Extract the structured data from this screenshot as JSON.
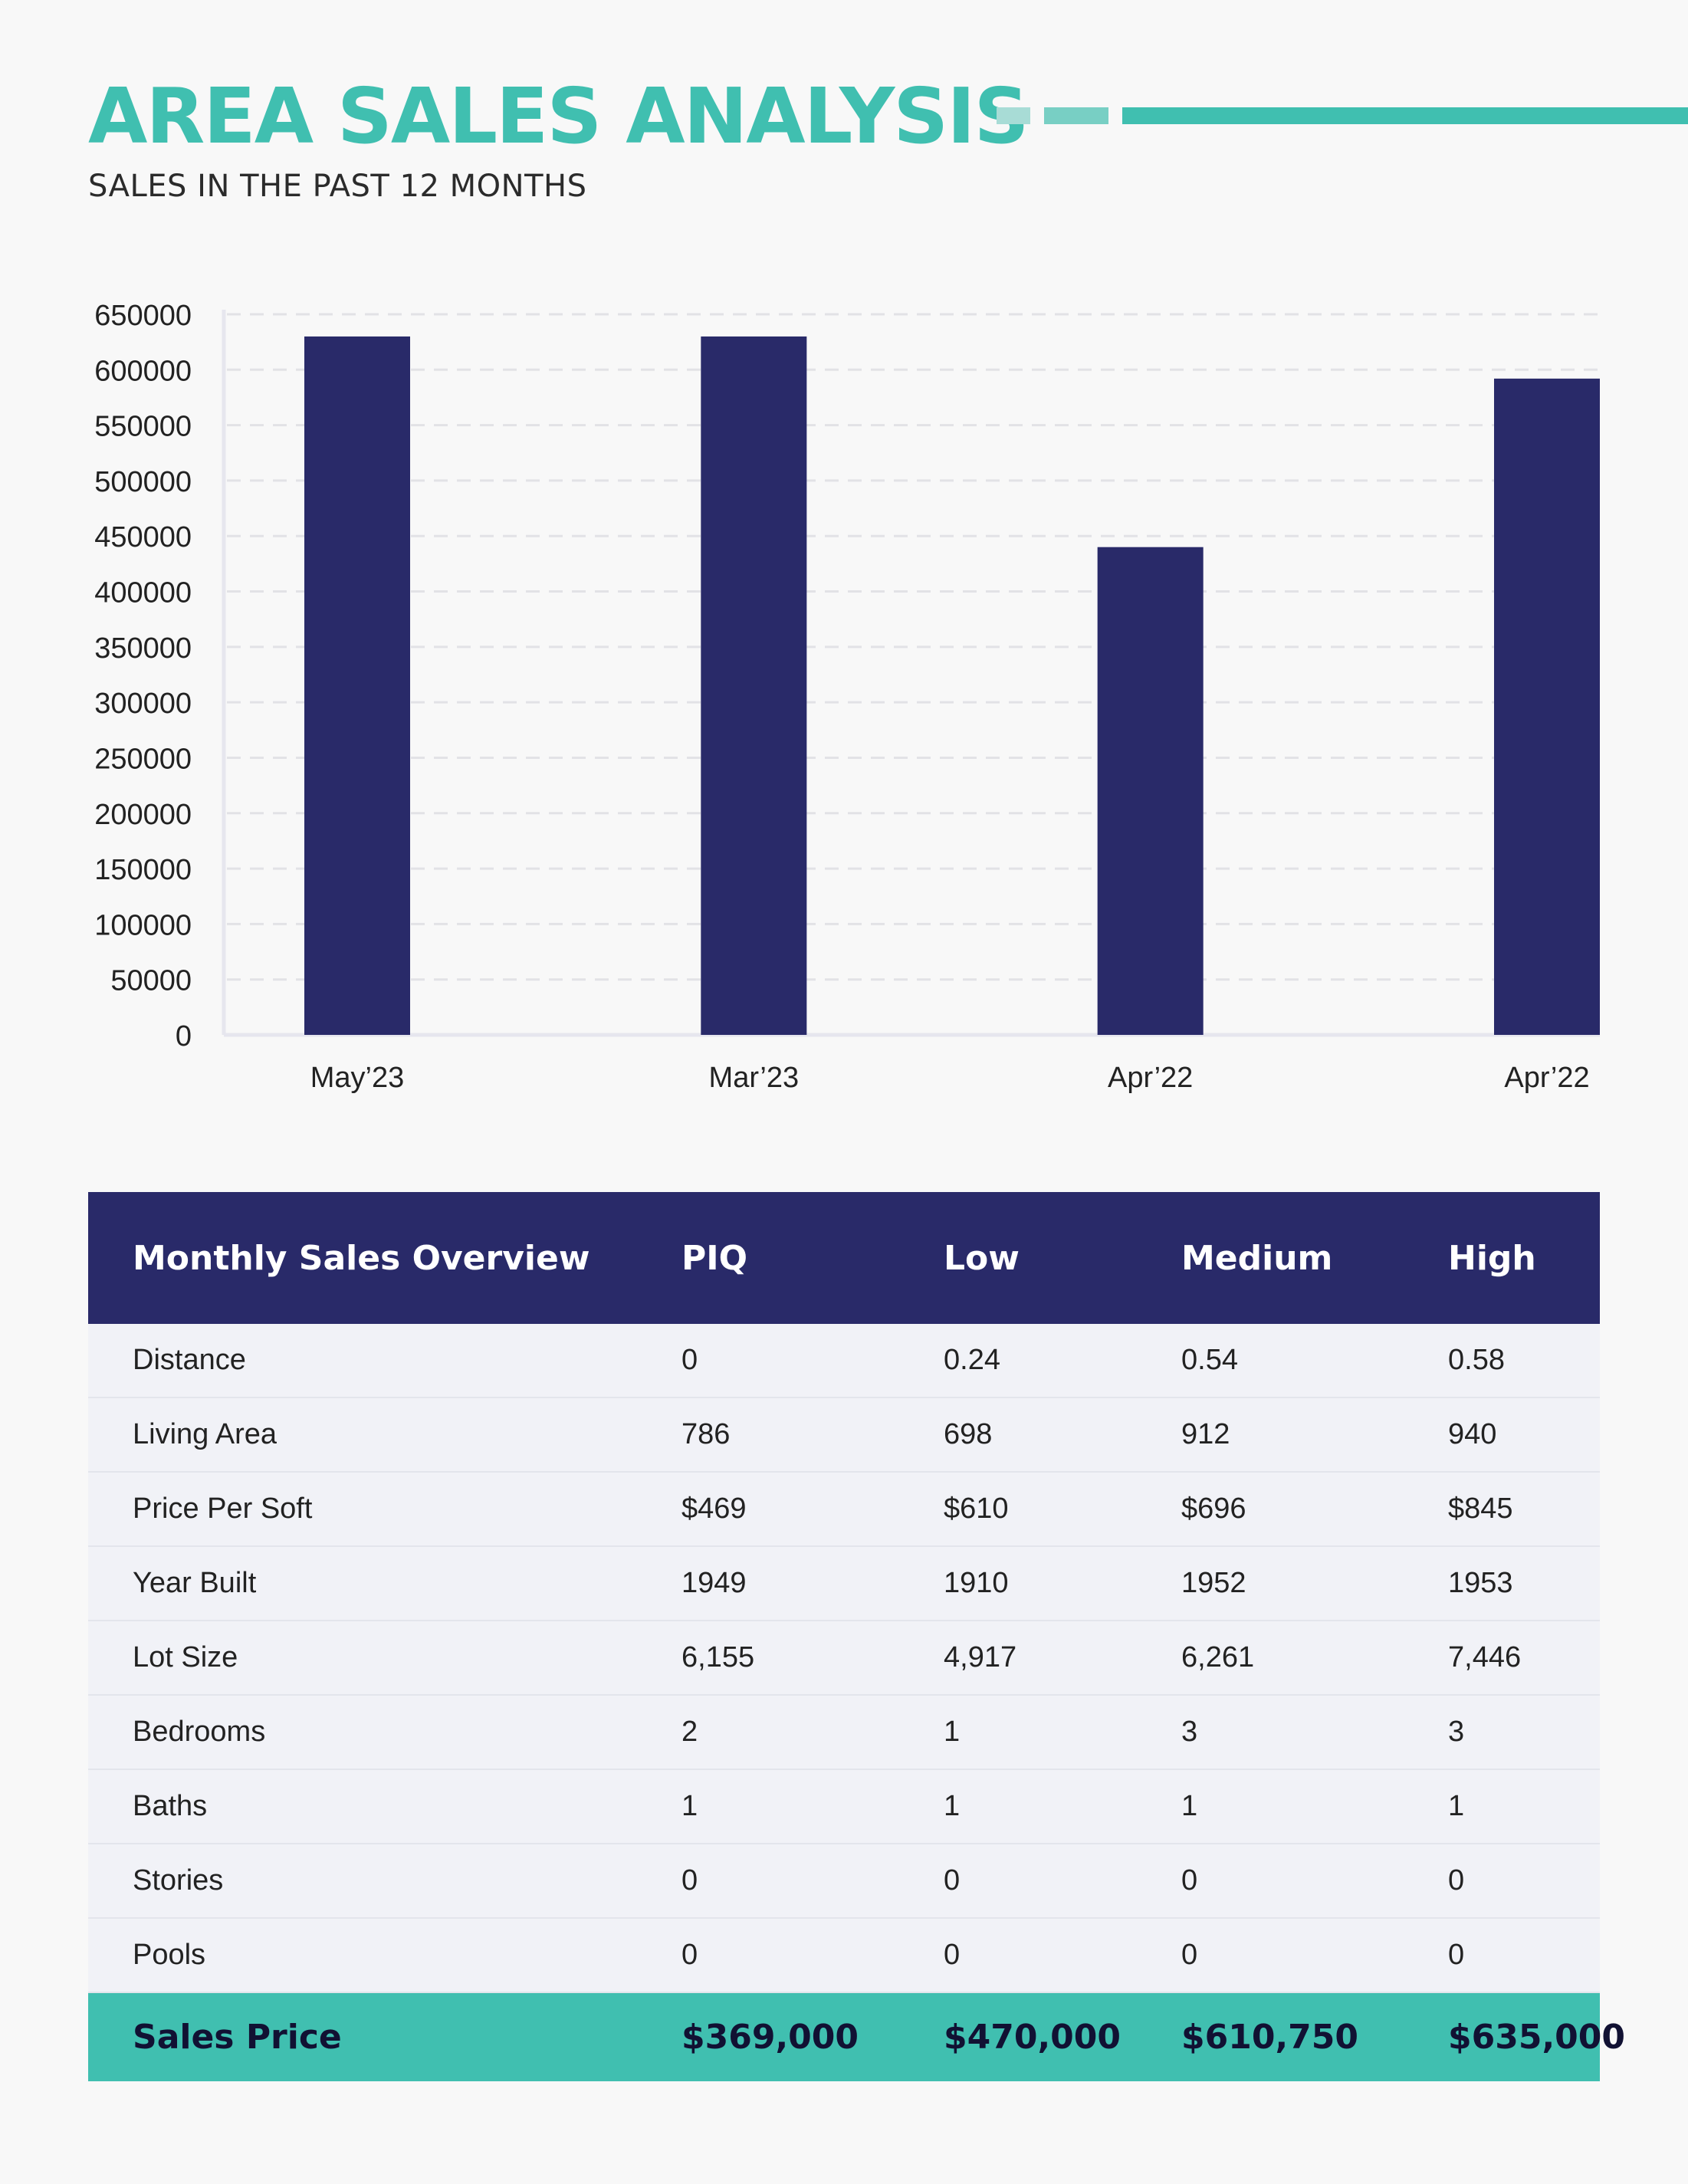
{
  "header": {
    "title": "AREA SALES ANALYSIS",
    "subtitle": "SALES IN THE PAST 12 MONTHS"
  },
  "colors": {
    "teal": "#40bfb0",
    "teal_light": "#a8dcd6",
    "teal_mid": "#78cfc4",
    "navy": "#292a69",
    "row_bg": "#f1f2f7"
  },
  "chart_data": {
    "type": "bar",
    "categories": [
      "May’23",
      "Mar’23",
      "Apr’22",
      "Apr’22"
    ],
    "values": [
      630000,
      630000,
      440000,
      592000
    ],
    "title": "",
    "xlabel": "",
    "ylabel": "",
    "ylim": [
      0,
      650000
    ],
    "yticks": [
      0,
      50000,
      100000,
      150000,
      200000,
      250000,
      300000,
      350000,
      400000,
      450000,
      500000,
      550000,
      600000,
      650000
    ],
    "grid": true,
    "bar_color": "#292a69"
  },
  "table": {
    "headers": [
      "Monthly Sales Overview",
      "PIQ",
      "Low",
      "Medium",
      "High"
    ],
    "rows": [
      [
        "Distance",
        "0",
        "0.24",
        "0.54",
        "0.58"
      ],
      [
        "Living Area",
        "786",
        "698",
        "912",
        "940"
      ],
      [
        "Price Per Soft",
        "$469",
        "$610",
        "$696",
        "$845"
      ],
      [
        "Year Built",
        "1949",
        "1910",
        "1952",
        "1953"
      ],
      [
        "Lot Size",
        "6,155",
        "4,917",
        "6,261",
        "7,446"
      ],
      [
        "Bedrooms",
        "2",
        "1",
        "3",
        "3"
      ],
      [
        "Baths",
        "1",
        "1",
        "1",
        "1"
      ],
      [
        "Stories",
        "0",
        "0",
        "0",
        "0"
      ],
      [
        "Pools",
        "0",
        "0",
        "0",
        "0"
      ]
    ],
    "footer": [
      "Sales Price",
      "$369,000",
      "$470,000",
      "$610,750",
      "$635,000"
    ]
  }
}
